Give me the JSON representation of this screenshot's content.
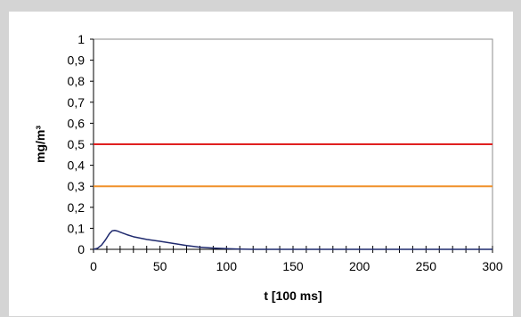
{
  "chart_data": {
    "type": "line",
    "title": "",
    "xlabel": "t [100 ms]",
    "ylabel": "mg/m³",
    "xlim": [
      0,
      300
    ],
    "ylim": [
      0,
      1
    ],
    "x_ticks": [
      "0",
      "50",
      "100",
      "150",
      "200",
      "250",
      "300"
    ],
    "y_ticks": [
      "0",
      "0,1",
      "0,2",
      "0,3",
      "0,4",
      "0,5",
      "0,6",
      "0,7",
      "0,8",
      "0,9",
      "1"
    ],
    "grid": false,
    "legend": "none",
    "series": [
      {
        "color": "#1f2a6e",
        "x": [
          0,
          3,
          6,
          9,
          12,
          14,
          16,
          18,
          20,
          25,
          30,
          40,
          50,
          60,
          70,
          80,
          90,
          100,
          110,
          120,
          150,
          200,
          250,
          300
        ],
        "y": [
          0,
          0.005,
          0.02,
          0.045,
          0.075,
          0.088,
          0.09,
          0.087,
          0.082,
          0.07,
          0.06,
          0.047,
          0.038,
          0.028,
          0.018,
          0.01,
          0.006,
          0.003,
          0.001,
          0,
          0,
          0,
          0,
          0
        ]
      },
      {
        "color": "#e02020",
        "x": [
          0,
          300
        ],
        "y": [
          0.5,
          0.5
        ]
      },
      {
        "color": "#f0902a",
        "x": [
          0,
          300
        ],
        "y": [
          0.3,
          0.3
        ]
      }
    ]
  }
}
